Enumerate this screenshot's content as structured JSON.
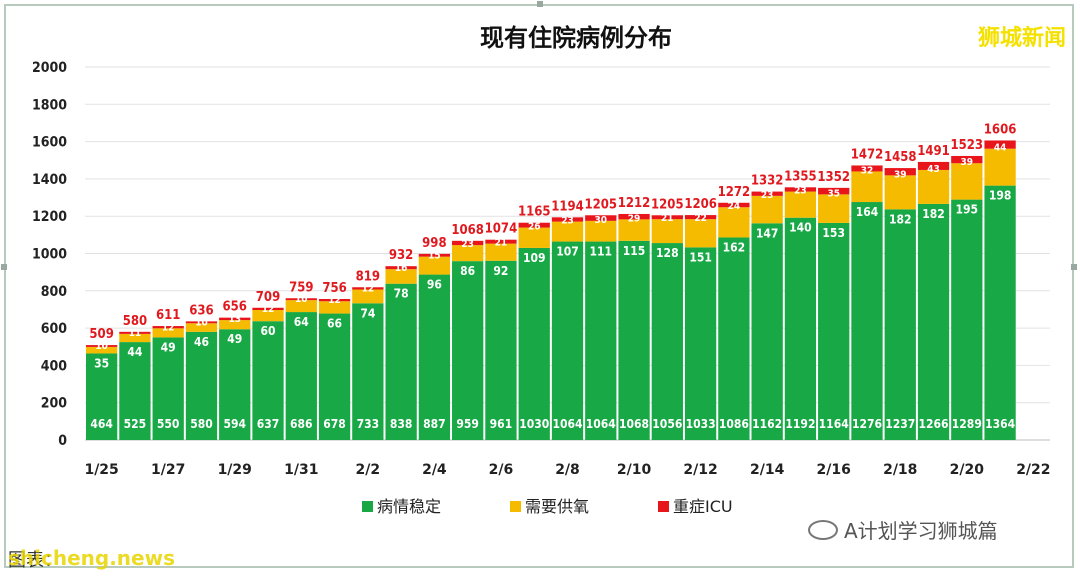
{
  "brand_watermark": "狮城新闻",
  "footer_watermark_left": "shicheng.news",
  "footer_watermark_left_under": "图表：",
  "footer_watermark_right": "A计划学习狮城篇",
  "colors": {
    "stable": "#19a846",
    "oxygen": "#f5bb00",
    "icu": "#e8151b",
    "total_label": "#e0191f"
  },
  "chart_data": {
    "type": "bar",
    "stacked": true,
    "title": "现有住院病例分布",
    "xlabel": "",
    "ylabel": "",
    "ylim": [
      0,
      2000
    ],
    "yticks": [
      0,
      200,
      400,
      600,
      800,
      1000,
      1200,
      1400,
      1600,
      1800,
      2000
    ],
    "grid": true,
    "legend_position": "bottom",
    "x_tick_labels": [
      "1/25",
      "1/27",
      "1/29",
      "1/31",
      "2/2",
      "2/4",
      "2/6",
      "2/8",
      "2/10",
      "2/12",
      "2/14",
      "2/16",
      "2/18",
      "2/20",
      "2/22"
    ],
    "categories": [
      "1/25",
      "1/26",
      "1/27",
      "1/28",
      "1/29",
      "1/30",
      "1/31",
      "2/1",
      "2/2",
      "2/3",
      "2/4",
      "2/5",
      "2/6",
      "2/7",
      "2/8",
      "2/9",
      "2/10",
      "2/11",
      "2/12",
      "2/13",
      "2/14",
      "2/15",
      "2/16",
      "2/17",
      "2/18",
      "2/19",
      "2/20",
      "2/21",
      "2/22"
    ],
    "series": [
      {
        "name": "病情稳定",
        "values": [
          464,
          525,
          550,
          580,
          594,
          637,
          686,
          678,
          733,
          838,
          887,
          959,
          961,
          1030,
          1064,
          1064,
          1068,
          1056,
          1033,
          1086,
          1162,
          1192,
          1164,
          1276,
          1237,
          1266,
          1289,
          1364,
          null
        ]
      },
      {
        "name": "需要供氧",
        "values": [
          35,
          44,
          49,
          46,
          49,
          60,
          64,
          66,
          74,
          78,
          96,
          86,
          92,
          109,
          107,
          111,
          115,
          128,
          151,
          162,
          147,
          140,
          153,
          164,
          182,
          182,
          195,
          198,
          null
        ]
      },
      {
        "name": "重症ICU",
        "values": [
          10,
          11,
          12,
          10,
          13,
          12,
          10,
          12,
          12,
          16,
          15,
          23,
          21,
          26,
          23,
          30,
          29,
          21,
          22,
          24,
          23,
          23,
          35,
          32,
          39,
          43,
          39,
          44,
          null
        ]
      }
    ],
    "totals": [
      509,
      580,
      611,
      636,
      656,
      709,
      759,
      756,
      819,
      932,
      998,
      1068,
      1074,
      1165,
      1194,
      1205,
      1212,
      1205,
      1206,
      1272,
      1332,
      1355,
      1352,
      1472,
      1458,
      1491,
      1523,
      1606,
      null
    ]
  }
}
